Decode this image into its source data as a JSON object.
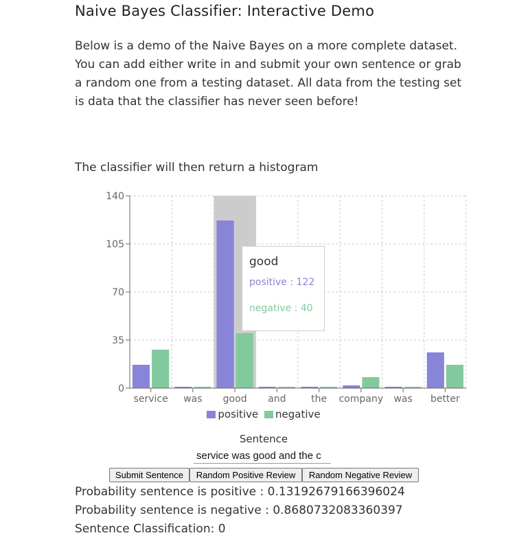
{
  "page": {
    "title": "Naive Bayes Classifier: Interactive Demo",
    "intro": "Below is a demo of the Naive Bayes on a more complete dataset. You can add either write in and submit your own sentence or grab a random one from a testing dataset. All data from the testing set is data that the classifier has never seen before!",
    "histogram_note": "The classifier will then return a histogram"
  },
  "chart_data": {
    "type": "bar",
    "categories": [
      "service",
      "was",
      "good",
      "and",
      "the",
      "company",
      "was",
      "better"
    ],
    "series": [
      {
        "name": "positive",
        "values": [
          17,
          1,
          122,
          1,
          1,
          2,
          1,
          26
        ],
        "color": "#8884d8"
      },
      {
        "name": "negative",
        "values": [
          28,
          1,
          40,
          1,
          1,
          8,
          1,
          17
        ],
        "color": "#82ca9d"
      }
    ],
    "y_ticks": [
      "0",
      "35",
      "70",
      "105",
      "140"
    ],
    "ylim": [
      0,
      140
    ],
    "grid": true,
    "grid_color": "#cccccc",
    "highlight_color": "#cccccc",
    "highlighted_category": "good",
    "legend_position": "bottom"
  },
  "tooltip": {
    "title": "good",
    "positive_text": "positive : 122",
    "negative_text": "negative : 40"
  },
  "legend": {
    "positive": "positive",
    "negative": "negative"
  },
  "form": {
    "label": "Sentence",
    "value": "service was good and the c",
    "submit_label": "Submit Sentence",
    "random_positive_label": "Random Positive Review",
    "random_negative_label": "Random Negative Review"
  },
  "results": {
    "positive": "Probability sentence is positive : 0.13192679166396024",
    "negative": "Probability sentence is negative : 0.8680732083360397",
    "classification": "Sentence Classification: 0"
  }
}
